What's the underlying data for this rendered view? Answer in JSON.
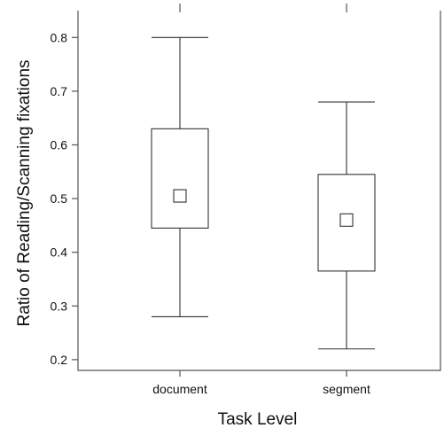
{
  "chart_data": {
    "type": "boxplot",
    "title": "",
    "xlabel": "Task Level",
    "ylabel": "Ratio of Reading/Scanning fixations",
    "ylim": [
      0.18,
      0.85
    ],
    "yticks": [
      0.2,
      0.3,
      0.4,
      0.5,
      0.6,
      0.7,
      0.8
    ],
    "ytick_labels": [
      "0.2",
      "0.3",
      "0.4",
      "0.5",
      "0.6",
      "0.7",
      "0.8"
    ],
    "categories": [
      "document",
      "segment"
    ],
    "boxes": [
      {
        "category": "document",
        "whisker_low": 0.28,
        "q1": 0.445,
        "q3": 0.63,
        "whisker_high": 0.8,
        "mean": 0.505
      },
      {
        "category": "segment",
        "whisker_low": 0.22,
        "q1": 0.365,
        "q3": 0.545,
        "whisker_high": 0.68,
        "mean": 0.46
      }
    ],
    "grid": false,
    "legend": "none"
  }
}
